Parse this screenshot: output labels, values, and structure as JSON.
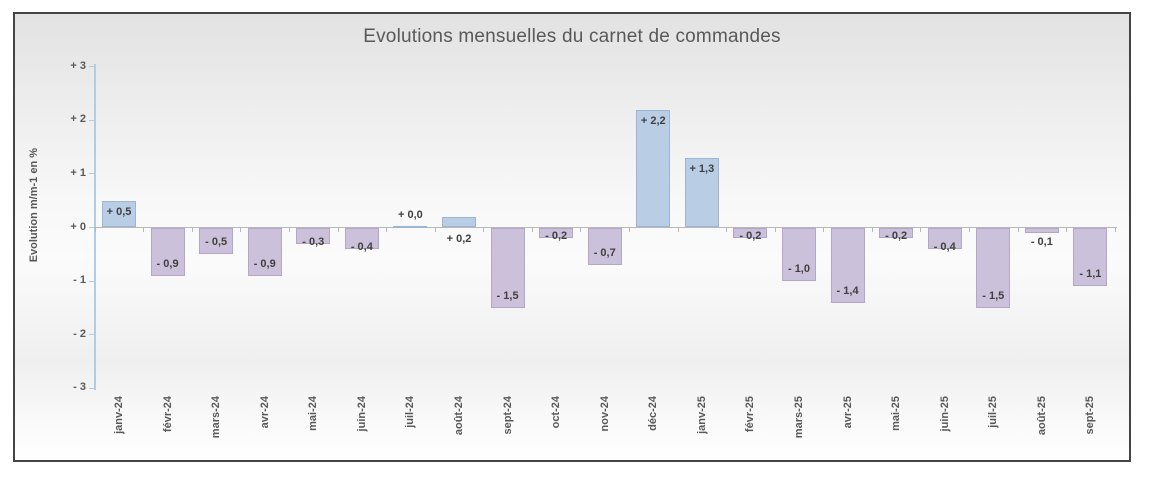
{
  "title": "Evolutions mensuelles du carnet de commandes",
  "y_axis_title": "Evolution m/m-1 en %",
  "chart_data": {
    "type": "bar",
    "title": "Evolutions mensuelles du carnet de commandes",
    "xlabel": "",
    "ylabel": "Evolution m/m-1 en %",
    "ylim": [
      -3,
      3
    ],
    "grid": false,
    "legend": "none",
    "categories": [
      "janv-24",
      "févr-24",
      "mars-24",
      "avr-24",
      "mai-24",
      "juin-24",
      "juil-24",
      "août-24",
      "sept-24",
      "oct-24",
      "nov-24",
      "déc-24",
      "janv-25",
      "févr-25",
      "mars-25",
      "avr-25",
      "mai-25",
      "juin-25",
      "juil-25",
      "août-25",
      "sept-25"
    ],
    "values": [
      0.5,
      -0.9,
      -0.5,
      -0.9,
      -0.3,
      -0.4,
      0.0,
      0.2,
      -1.5,
      -0.2,
      -0.7,
      2.2,
      1.3,
      -0.2,
      -1.0,
      -1.4,
      -0.2,
      -0.4,
      -1.5,
      -0.1,
      -1.1
    ],
    "value_labels": [
      "+ 0,5",
      "- 0,9",
      "- 0,5",
      "- 0,9",
      "- 0,3",
      "- 0,4",
      "+ 0,0",
      "+ 0,2",
      "- 1,5",
      "- 0,2",
      "- 0,7",
      "+ 2,2",
      "+ 1,3",
      "- 0,2",
      "- 1,0",
      "- 1,4",
      "- 0,2",
      "- 0,4",
      "- 1,5",
      "- 0,1",
      "- 1,1"
    ],
    "y_tick_labels": [
      "+ 3",
      "+ 2",
      "+ 1",
      "+ 0",
      "- 1",
      "- 2",
      "- 3"
    ],
    "y_tick_values": [
      3,
      2,
      1,
      0,
      -1,
      -2,
      -3
    ],
    "colors": {
      "positive_fill": "#b9cde5",
      "positive_border": "#9ab5d5",
      "negative_fill": "#ccc1da",
      "negative_border": "#b4a6c9",
      "y_axis_line": "#aecde6",
      "zero_line": "#b8b8b8",
      "data_label": "#404040",
      "tick_label": "#595959",
      "title": "#595959"
    }
  }
}
